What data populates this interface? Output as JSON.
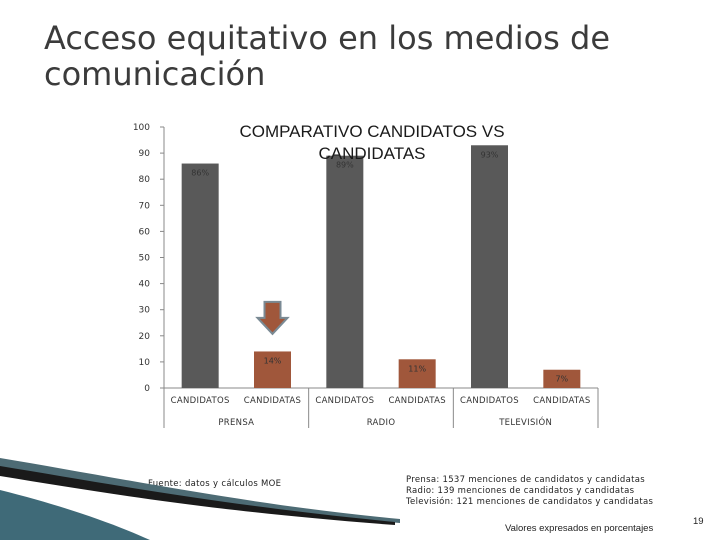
{
  "slide": {
    "title_line1": "Acceso equitativo en los medios de",
    "title_line2": "comunicación",
    "source": "Fuente: datos y cálculos MOE",
    "notes": [
      "Prensa: 1537 menciones de candidatos y candidatas",
      "Radio: 139  menciones de candidatos y candidatas",
      "Televisión: 121 menciones de candidatos y candidatas"
    ],
    "unit_note": "Valores expresados en porcentajes",
    "page_number": "19"
  },
  "chart_data": {
    "type": "bar",
    "title": "COMPARATIVO CANDIDATOS VS CANDIDATAS",
    "groups": [
      "PRENSA",
      "RADIO",
      "TELEVISIÓN"
    ],
    "categories": [
      "CANDIDATOS",
      "CANDIDATAS",
      "CANDIDATOS",
      "CANDIDATAS",
      "CANDIDATOS",
      "CANDIDATAS"
    ],
    "values": [
      86,
      14,
      89,
      11,
      93,
      7
    ],
    "data_labels": [
      "86%",
      "14%",
      "89%",
      "11%",
      "93%",
      "7%"
    ],
    "bar_colors": [
      "#595959",
      "#a0573b",
      "#595959",
      "#a0573b",
      "#595959",
      "#a0573b"
    ],
    "ylim": [
      0,
      100
    ],
    "yticks": [
      0,
      10,
      20,
      30,
      40,
      50,
      60,
      70,
      80,
      90,
      100
    ],
    "xlabel": "",
    "ylabel": "",
    "grid": false,
    "legend": "none",
    "annotation": "down-arrow-icon pointing at CANDIDATAS PRENSA bar",
    "arrow_color": "#a0573b"
  }
}
